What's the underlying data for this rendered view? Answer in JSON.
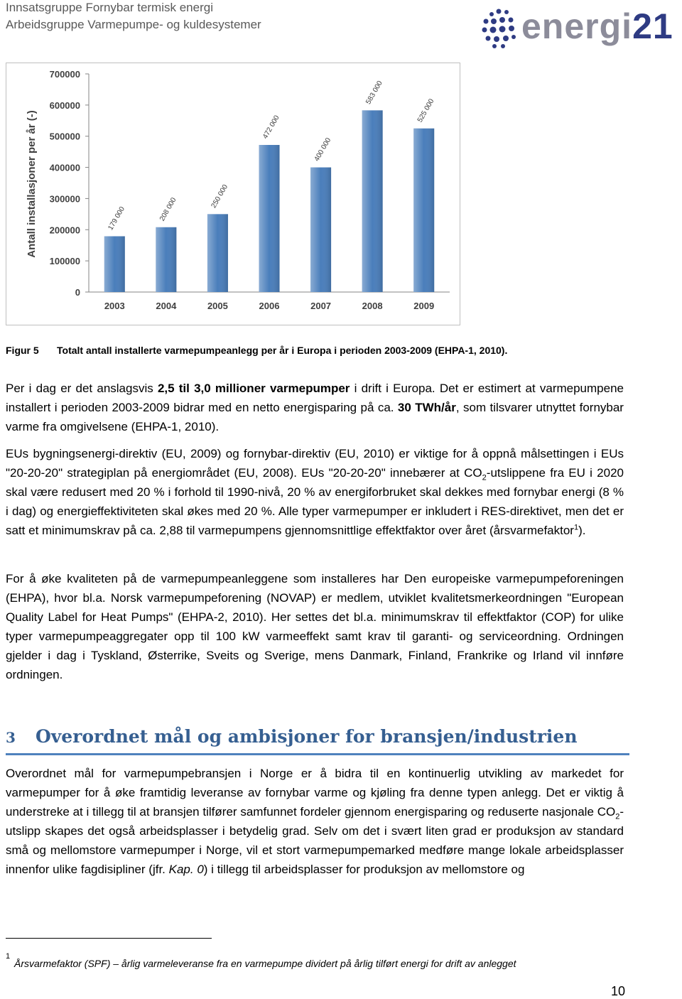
{
  "header": {
    "line1": "Innsatsgruppe Fornybar termisk energi",
    "line2": "Arbeidsgruppe Varmepumpe- og kuldesystemer",
    "logo_word": "energi",
    "logo_number": "21"
  },
  "chart_data": {
    "type": "bar",
    "y_label": "Antall installasjoner per år (-)",
    "categories": [
      "2003",
      "2004",
      "2005",
      "2006",
      "2007",
      "2008",
      "2009"
    ],
    "values": [
      179000,
      208000,
      250000,
      472000,
      400000,
      583000,
      525000
    ],
    "value_labels": [
      "179 000",
      "208 000",
      "250 000",
      "472 000",
      "400 000",
      "583 000",
      "525 000"
    ],
    "color": "#4a7ebb",
    "ylim": [
      0,
      700000
    ],
    "yticks": [
      0,
      100000,
      200000,
      300000,
      400000,
      500000,
      600000,
      700000
    ],
    "grid": false
  },
  "figure": {
    "label": "Figur 5",
    "caption": "Totalt antall installerte varmepumpeanlegg per år i Europa i perioden 2003-2009 (EHPA-1, 2010)."
  },
  "paragraphs": [
    [
      "Per i dag er det anslagsvis ",
      "2,5 til 3,0 millioner varmepumper",
      " i drift i Europa. Det er estimert at varmepumpene installert i perioden 2003-2009 bidrar med en netto energisparing på ca. ",
      "30 TWh/år",
      ", som tilsvarer utnyttet fornybar varme fra omgivelsene (EHPA-1, 2010)."
    ],
    [
      "EUs bygningsenergi-direktiv (EU, 2009) og fornybar-direktiv (EU, 2010) er viktige for å oppnå målsettingen i EUs \"20-20-20\" strategiplan på energiområdet (EU, 2008). EUs \"20-20-20\" innebærer at CO",
      "2",
      "-utslippene fra EU i 2020 skal være redusert med 20 % i forhold til 1990-nivå, 20 % av energiforbruket skal dekkes med fornybar energi (8 % i dag) og energieffektiviteten skal økes med 20 %. Alle typer varmepumper er inkludert i RES-direktivet, men det er satt et minimumskrav på ca. 2,88 til varmepumpens gjennomsnittlige effektfaktor over året (årsvarmefaktor",
      "1",
      ")."
    ],
    [
      "For å øke kvaliteten på de varmepumpeanleggene som installeres har Den europeiske varmepumpeforeningen (EHPA), hvor bl.a. Norsk varmepumpeforening (NOVAP) er medlem, utviklet kvalitetsmerkeordningen \"European Quality Label for Heat Pumps\" (EHPA-2, 2010). Her settes det bl.a. minimumskrav til effektfaktor (COP) for ulike typer varmepumpeaggregater opp til 100 kW varmeeffekt samt krav til garanti- og serviceordning. Ordningen gjelder i dag i Tyskland, Østerrike, Sveits og Sverige, mens Danmark, Finland, Frankrike og Irland vil innføre ordningen."
    ],
    [
      "Overordnet mål for varmepumpebransjen i Norge er å bidra til en kontinuerlig utvikling av markedet for varmepumper for å øke framtidig leveranse av fornybar varme og kjøling fra denne typen anlegg. Det er viktig å understreke at i tillegg til at bransjen tilfører samfunnet fordeler gjennom energisparing og reduserte nasjonale CO",
      "2",
      "-utslipp skapes det også arbeidsplasser i betydelig grad. Selv om det i svært liten grad er produksjon av standard små og mellomstore varmepumper i Norge, vil et stort varmepumpemarked medføre mange lokale arbeidsplasser innenfor ulike fagdisipliner (jfr. ",
      "Kap. 0",
      ") i tillegg til arbeidsplasser for produksjon av mellomstore og"
    ]
  ],
  "section": {
    "number": "3",
    "title": "Overordnet mål og ambisjoner for bransjen/industrien"
  },
  "footnote": {
    "number": "1",
    "text": "Årsvarmefaktor (SPF) – årlig varmeleveranse fra en varmepumpe dividert på årlig tilført energi for drift av anlegget"
  },
  "page_number": "10"
}
